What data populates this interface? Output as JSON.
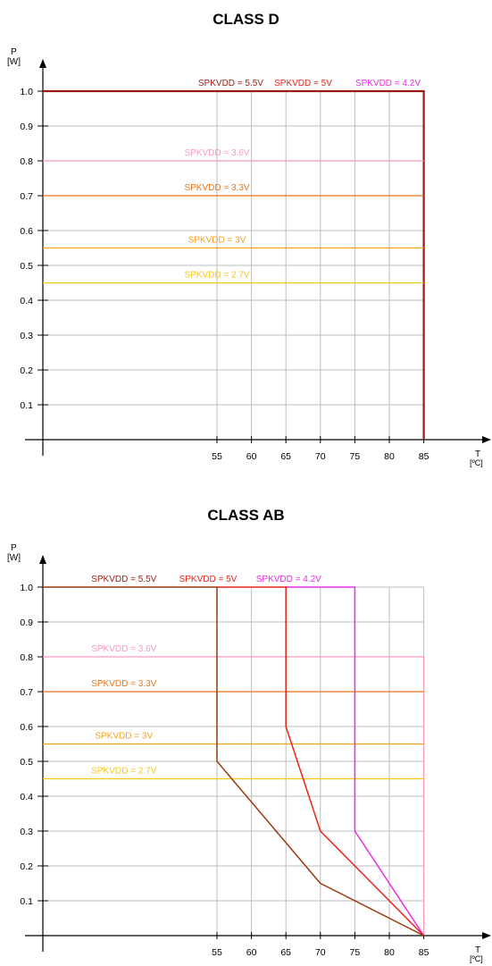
{
  "colors": {
    "v55": "#9b1b14",
    "v5": "#e8231c",
    "v42": "#e62ee3",
    "v36": "#f59bc6",
    "v33": "#e8751a",
    "v3": "#f5a21e",
    "v27": "#f7c71c",
    "ab55": "#9a3a10"
  },
  "chart_data": [
    {
      "type": "line",
      "title": "CLASS D",
      "ylabel": "P",
      "yunit": "[W]",
      "xlabel": "T",
      "xunit": "[ºC]",
      "x_ticks": [
        "55",
        "60",
        "65",
        "70",
        "75",
        "80",
        "85"
      ],
      "y_ticks": [
        "0.1",
        "0.2",
        "0.3",
        "0.4",
        "0.5",
        "0.6",
        "0.7",
        "0.8",
        "0.9",
        "1.0"
      ],
      "xlim": [
        30,
        85
      ],
      "ylim": [
        0,
        1.0
      ],
      "grid": true,
      "series": [
        {
          "name": "SPKVDD = 5.5V",
          "color": "#9b1b14",
          "width": 2.2,
          "points": [
            [
              30,
              1.0
            ],
            [
              85,
              1.0
            ],
            [
              85,
              0
            ]
          ]
        },
        {
          "name": "SPKVDD = 3.6V",
          "color": "#f59bc6",
          "width": 1.3,
          "points": [
            [
              30,
              0.8
            ],
            [
              85,
              0.8
            ]
          ]
        },
        {
          "name": "SPKVDD = 3.3V",
          "color": "#e8751a",
          "width": 1.3,
          "points": [
            [
              30,
              0.7
            ],
            [
              85,
              0.7
            ]
          ]
        },
        {
          "name": "SPKVDD = 3V",
          "color": "#f5a21e",
          "width": 1.3,
          "points": [
            [
              30,
              0.55
            ],
            [
              85,
              0.55
            ]
          ]
        },
        {
          "name": "SPKVDD = 2.7V",
          "color": "#f7c71c",
          "width": 1.3,
          "points": [
            [
              30,
              0.45
            ],
            [
              85,
              0.45
            ]
          ]
        }
      ],
      "labels": [
        {
          "text": "SPKVDD = 5.5V",
          "color": "#9b1b14",
          "x": 57,
          "y": 1.0
        },
        {
          "text": "SPKVDD = 5V",
          "color": "#e8231c",
          "x": 67.5,
          "y": 1.0
        },
        {
          "text": "SPKVDD = 4.2V",
          "color": "#e62ee3",
          "x": 79.8,
          "y": 1.0
        },
        {
          "text": "SPKVDD = 3.6V",
          "color": "#f59bc6",
          "x": 55,
          "y": 0.8
        },
        {
          "text": "SPKVDD = 3.3V",
          "color": "#e8751a",
          "x": 55,
          "y": 0.7
        },
        {
          "text": "SPKVDD = 3V",
          "color": "#f5a21e",
          "x": 55,
          "y": 0.55
        },
        {
          "text": "SPKVDD = 2.7V",
          "color": "#f7c71c",
          "x": 55,
          "y": 0.45
        }
      ]
    },
    {
      "type": "line",
      "title": "CLASS AB",
      "ylabel": "P",
      "yunit": "[W]",
      "xlabel": "T",
      "xunit": "[ºC]",
      "x_ticks": [
        "55",
        "60",
        "65",
        "70",
        "75",
        "80",
        "85"
      ],
      "y_ticks": [
        "0.1",
        "0.2",
        "0.3",
        "0.4",
        "0.5",
        "0.6",
        "0.7",
        "0.8",
        "0.9",
        "1.0"
      ],
      "xlim": [
        30,
        85
      ],
      "ylim": [
        0,
        1.0
      ],
      "grid": true,
      "series": [
        {
          "name": "SPKVDD = 3.6V",
          "color": "#f59bc6",
          "width": 1.3,
          "points": [
            [
              30,
              0.8
            ],
            [
              85,
              0.8
            ],
            [
              85,
              0
            ]
          ]
        },
        {
          "name": "SPKVDD = 3.3V",
          "color": "#e8751a",
          "width": 1.3,
          "points": [
            [
              30,
              0.7
            ],
            [
              85,
              0.7
            ]
          ]
        },
        {
          "name": "SPKVDD = 3V",
          "color": "#f5a21e",
          "width": 1.3,
          "points": [
            [
              30,
              0.55
            ],
            [
              85,
              0.55
            ]
          ]
        },
        {
          "name": "SPKVDD = 2.7V",
          "color": "#f7c71c",
          "width": 1.3,
          "points": [
            [
              30,
              0.45
            ],
            [
              85,
              0.45
            ]
          ]
        },
        {
          "name": "SPKVDD = 4.2V",
          "color": "#e62ee3",
          "width": 1.5,
          "points": [
            [
              65,
              1.0
            ],
            [
              75,
              1.0
            ],
            [
              75,
              0.3
            ],
            [
              85,
              0
            ]
          ]
        },
        {
          "name": "SPKVDD = 5V",
          "color": "#e8231c",
          "width": 1.5,
          "points": [
            [
              55,
              1.0
            ],
            [
              65,
              1.0
            ],
            [
              65,
              0.6
            ],
            [
              70,
              0.3
            ],
            [
              85,
              0
            ]
          ]
        },
        {
          "name": "SPKVDD = 5.5V",
          "color": "#9a3a10",
          "width": 1.5,
          "points": [
            [
              30,
              1.0
            ],
            [
              55,
              1.0
            ],
            [
              55,
              0.5
            ],
            [
              70,
              0.15
            ],
            [
              85,
              0
            ]
          ]
        }
      ],
      "labels": [
        {
          "text": "SPKVDD = 5.5V",
          "color": "#9b1b14",
          "x": 41.5,
          "y": 1.0
        },
        {
          "text": "SPKVDD = 5V",
          "color": "#e8231c",
          "x": 53.7,
          "y": 1.0
        },
        {
          "text": "SPKVDD = 4.2V",
          "color": "#e62ee3",
          "x": 65.4,
          "y": 1.0
        },
        {
          "text": "SPKVDD = 3.6V",
          "color": "#f59bc6",
          "x": 41.5,
          "y": 0.8
        },
        {
          "text": "SPKVDD = 3.3V",
          "color": "#e8751a",
          "x": 41.5,
          "y": 0.7
        },
        {
          "text": "SPKVDD = 3V",
          "color": "#f5a21e",
          "x": 41.5,
          "y": 0.55
        },
        {
          "text": "SPKVDD = 2.7V",
          "color": "#f7c71c",
          "x": 41.5,
          "y": 0.45
        }
      ]
    }
  ]
}
